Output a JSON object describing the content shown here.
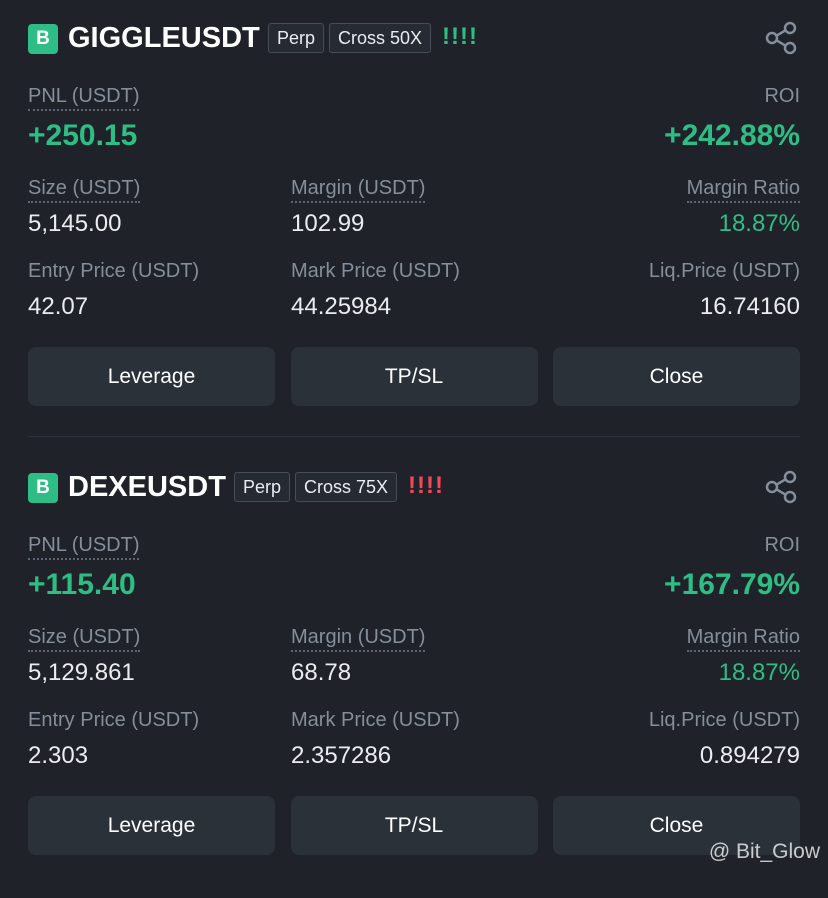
{
  "positions": [
    {
      "side": "B",
      "symbol": "GIGGLEUSDT",
      "tags": [
        "Perp",
        "Cross 50X"
      ],
      "risk": "!!!!",
      "risk_color": "#2ebd85",
      "pnl_label": "PNL (USDT)",
      "pnl": "+250.15",
      "roi_label": "ROI",
      "roi": "+242.88%",
      "stats": [
        {
          "label": "Size (USDT)",
          "value": "5,145.00"
        },
        {
          "label": "Margin (USDT)",
          "value": "102.99"
        },
        {
          "label": "Margin Ratio",
          "value": "18.87%"
        },
        {
          "label": "Entry Price (USDT)",
          "value": "42.07"
        },
        {
          "label": "Mark Price (USDT)",
          "value": "44.25984"
        },
        {
          "label": "Liq.Price (USDT)",
          "value": "16.74160"
        }
      ],
      "buttons": [
        "Leverage",
        "TP/SL",
        "Close"
      ]
    },
    {
      "side": "B",
      "symbol": "DEXEUSDT",
      "tags": [
        "Perp",
        "Cross 75X"
      ],
      "risk": "!!!!",
      "risk_color": "#f6465d",
      "pnl_label": "PNL (USDT)",
      "pnl": "+115.40",
      "roi_label": "ROI",
      "roi": "+167.79%",
      "stats": [
        {
          "label": "Size (USDT)",
          "value": "5,129.861"
        },
        {
          "label": "Margin (USDT)",
          "value": "68.78"
        },
        {
          "label": "Margin Ratio",
          "value": "18.87%"
        },
        {
          "label": "Entry Price (USDT)",
          "value": "2.303"
        },
        {
          "label": "Mark Price (USDT)",
          "value": "2.357286"
        },
        {
          "label": "Liq.Price (USDT)",
          "value": "0.894279"
        }
      ],
      "buttons": [
        "Leverage",
        "TP/SL",
        "Close"
      ]
    }
  ],
  "watermark": "@ Bit_Glow"
}
